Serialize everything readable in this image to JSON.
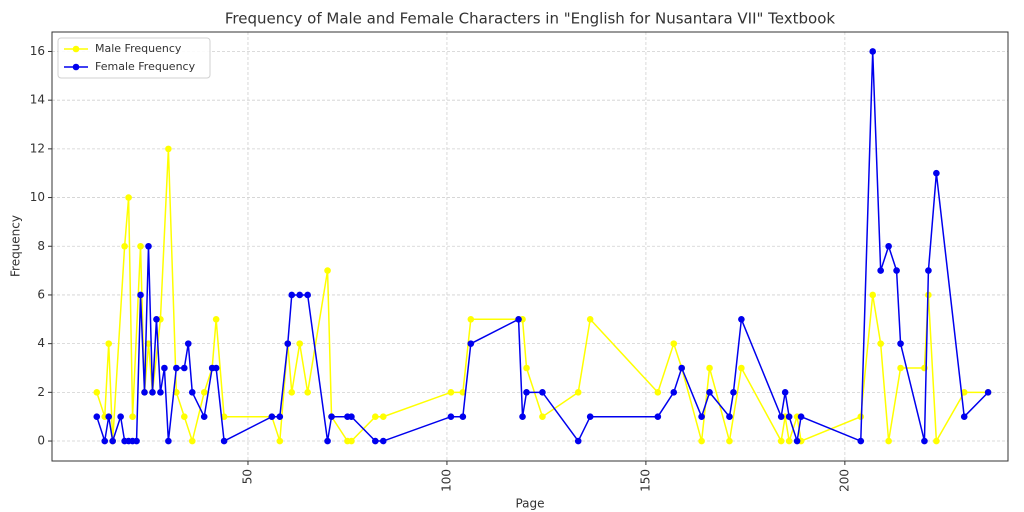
{
  "chart_data": {
    "type": "line",
    "title": "Frequency of Male and Female Characters in \"English for Nusantara VII\" Textbook",
    "x_label": "Page",
    "y_label": "Frequency",
    "series": [
      {
        "name": "Male Frequency",
        "color": "#ffff00",
        "x": [
          12,
          14,
          15,
          16,
          19,
          20,
          21,
          23,
          24,
          25,
          26,
          28,
          30,
          32,
          34,
          36,
          39,
          41,
          42,
          44,
          56,
          58,
          60,
          61,
          63,
          65,
          70,
          71,
          75,
          76,
          82,
          84,
          101,
          104,
          106,
          118,
          119,
          120,
          124,
          133,
          136,
          153,
          157,
          159,
          164,
          166,
          171,
          174,
          184,
          185,
          186,
          188,
          189,
          204,
          207,
          209,
          211,
          214,
          220,
          221,
          223,
          230,
          236
        ],
        "values": [
          2,
          1,
          4,
          0,
          8,
          10,
          1,
          8,
          2,
          4,
          2,
          5,
          12,
          2,
          1,
          0,
          2,
          3,
          5,
          1,
          1,
          0,
          4,
          2,
          4,
          2,
          7,
          1,
          0,
          0,
          1,
          1,
          2,
          2,
          5,
          5,
          5,
          3,
          1,
          2,
          5,
          2,
          4,
          3,
          0,
          3,
          0,
          3,
          0,
          1,
          0,
          1,
          0,
          1,
          6,
          4,
          0,
          3,
          3,
          6,
          0,
          2,
          2
        ]
      },
      {
        "name": "Female Frequency",
        "color": "#0000ee",
        "x": [
          12,
          14,
          15,
          16,
          18,
          19,
          20,
          21,
          22,
          23,
          24,
          25,
          26,
          27,
          28,
          29,
          30,
          32,
          34,
          35,
          36,
          39,
          41,
          42,
          44,
          56,
          58,
          60,
          61,
          63,
          65,
          70,
          71,
          75,
          76,
          82,
          84,
          101,
          104,
          106,
          118,
          119,
          120,
          124,
          133,
          136,
          153,
          157,
          159,
          164,
          166,
          171,
          172,
          174,
          184,
          185,
          186,
          188,
          189,
          204,
          207,
          209,
          211,
          213,
          214,
          220,
          221,
          223,
          230,
          236
        ],
        "values": [
          1,
          0,
          1,
          0,
          1,
          0,
          0,
          0,
          0,
          6,
          2,
          8,
          2,
          5,
          2,
          3,
          0,
          3,
          3,
          4,
          2,
          1,
          3,
          3,
          0,
          1,
          1,
          4,
          6,
          6,
          6,
          0,
          1,
          1,
          1,
          0,
          0,
          1,
          1,
          4,
          5,
          1,
          2,
          2,
          0,
          1,
          1,
          2,
          3,
          1,
          2,
          1,
          2,
          5,
          1,
          2,
          1,
          0,
          1,
          0,
          16,
          7,
          8,
          7,
          4,
          0,
          7,
          11,
          1,
          2
        ]
      }
    ],
    "xlim": [
      0.75,
      241
    ],
    "xticks": [
      50,
      100,
      150,
      200
    ],
    "ylim": [
      -0.82,
      16.8
    ],
    "yticks": [
      0,
      2,
      4,
      6,
      8,
      10,
      12,
      14,
      16
    ],
    "grid": true,
    "legend": "upper left"
  }
}
